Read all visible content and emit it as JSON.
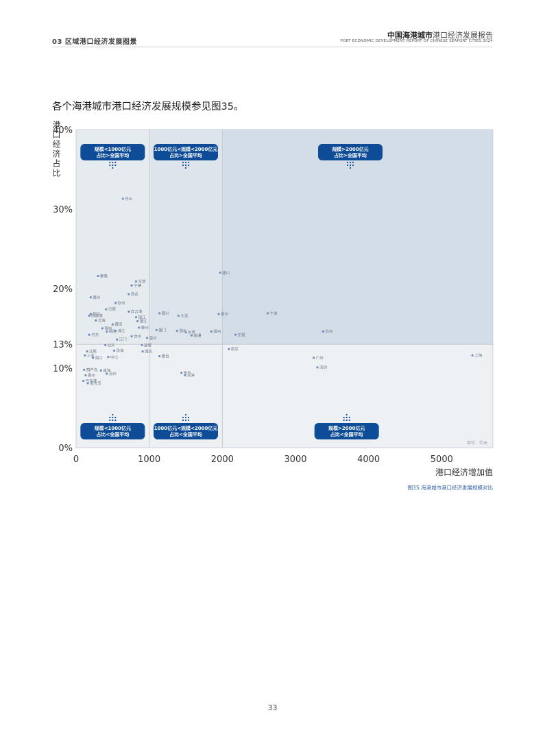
{
  "header": {
    "section": "03 区域港口经济发展图景",
    "report_title_bold": "中国海港城市",
    "report_title_rest": "港口经济发展报告",
    "report_title_en": "PORT ECONOMIC DEVELOPMENT REPORT OF CHINESE SEAPORT CITIES 2024"
  },
  "intro_text": "各个海港城市港口经济发展规模参见图35。",
  "caption": "图35.海港城市港口经济发展规模对比",
  "page_number": "33",
  "colors": {
    "badge": "#0f4c97",
    "dot": "#6e8fbf",
    "bg_low": "#eef1f4",
    "bg_high_mid": "#dde4ec",
    "bg_high_right": "#d3dde8"
  },
  "chart_data": {
    "type": "scatter",
    "xlabel": "港口经济增加值",
    "ylabel": "港口经济占比",
    "unit_note": "单位：亿元",
    "xlim": [
      0,
      5700
    ],
    "ylim": [
      0,
      40
    ],
    "x_ticks": [
      0,
      1000,
      2000,
      3000,
      4000,
      5000
    ],
    "y_ticks": [
      {
        "value": 0,
        "label": "0%"
      },
      {
        "value": 10,
        "label": "10%"
      },
      {
        "value": 13,
        "label": "13%"
      },
      {
        "value": 20,
        "label": "20%"
      },
      {
        "value": 30,
        "label": "30%"
      },
      {
        "value": 40,
        "label": "40%"
      }
    ],
    "thresholds": {
      "x": [
        1000,
        2000
      ],
      "y": 13
    },
    "quadrant_labels": [
      {
        "line1": "规模<1000亿元",
        "line2": "占比>全国平均",
        "x": 500,
        "pos": "top"
      },
      {
        "line1": "1000亿元<规模<2000亿元",
        "line2": "占比>全国平均",
        "x": 1500,
        "pos": "top"
      },
      {
        "line1": "规模>2000亿元",
        "line2": "占比>全国平均",
        "x": 3750,
        "pos": "top"
      },
      {
        "line1": "规模<1000亿元",
        "line2": "占比<全国平均",
        "x": 500,
        "pos": "bottom"
      },
      {
        "line1": "1000亿元<规模<2000亿元",
        "line2": "占比<全国平均",
        "x": 1500,
        "pos": "bottom"
      },
      {
        "line1": "规模>2000亿元",
        "line2": "占比<全国平均",
        "x": 3700,
        "pos": "bottom"
      }
    ],
    "points": [
      {
        "name": "舟山",
        "x": 640,
        "y": 31.3
      },
      {
        "name": "秦皇",
        "x": 300,
        "y": 21.6
      },
      {
        "name": "东营",
        "x": 820,
        "y": 20.9
      },
      {
        "name": "宁德",
        "x": 760,
        "y": 20.4
      },
      {
        "name": "茂名",
        "x": 720,
        "y": 19.3
      },
      {
        "name": "莆州",
        "x": 200,
        "y": 18.9
      },
      {
        "name": "钦州",
        "x": 540,
        "y": 18.2
      },
      {
        "name": "日照",
        "x": 410,
        "y": 17.4
      },
      {
        "name": "连云港",
        "x": 720,
        "y": 17.1
      },
      {
        "name": "防城港",
        "x": 180,
        "y": 16.6
      },
      {
        "name": "阳江",
        "x": 200,
        "y": 16.8
      },
      {
        "name": "镇江",
        "x": 820,
        "y": 16.4
      },
      {
        "name": "北海",
        "x": 270,
        "y": 16.0
      },
      {
        "name": "湛江",
        "x": 840,
        "y": 15.9
      },
      {
        "name": "莆田",
        "x": 500,
        "y": 15.5
      },
      {
        "name": "泰州",
        "x": 860,
        "y": 15.1
      },
      {
        "name": "锦州",
        "x": 360,
        "y": 15.0
      },
      {
        "name": "揭阳",
        "x": 420,
        "y": 14.6
      },
      {
        "name": "漳江",
        "x": 540,
        "y": 14.7
      },
      {
        "name": "丹东",
        "x": 180,
        "y": 14.2
      },
      {
        "name": "江门",
        "x": 560,
        "y": 13.6
      },
      {
        "name": "台州",
        "x": 760,
        "y": 14.0
      },
      {
        "name": "温州",
        "x": 970,
        "y": 13.8
      },
      {
        "name": "厦门",
        "x": 1100,
        "y": 14.8
      },
      {
        "name": "湖州",
        "x": 1380,
        "y": 14.7
      },
      {
        "name": "东莞",
        "x": 1500,
        "y": 14.5
      },
      {
        "name": "南通",
        "x": 1580,
        "y": 14.1
      },
      {
        "name": "福州",
        "x": 1850,
        "y": 14.6
      },
      {
        "name": "嘉兴",
        "x": 1140,
        "y": 16.9
      },
      {
        "name": "大连",
        "x": 1400,
        "y": 16.6
      },
      {
        "name": "泉州",
        "x": 1950,
        "y": 16.8
      },
      {
        "name": "盐城",
        "x": 900,
        "y": 12.9
      },
      {
        "name": "潍坊",
        "x": 910,
        "y": 12.1
      },
      {
        "name": "汕尾",
        "x": 150,
        "y": 12.1
      },
      {
        "name": "汕头",
        "x": 400,
        "y": 12.9
      },
      {
        "name": "珠海",
        "x": 520,
        "y": 12.2
      },
      {
        "name": "三亚",
        "x": 120,
        "y": 11.6
      },
      {
        "name": "海口",
        "x": 230,
        "y": 11.3
      },
      {
        "name": "中山",
        "x": 440,
        "y": 11.4
      },
      {
        "name": "葫芦岛",
        "x": 110,
        "y": 9.8
      },
      {
        "name": "威海",
        "x": 340,
        "y": 9.7
      },
      {
        "name": "惠州",
        "x": 130,
        "y": 9.1
      },
      {
        "name": "沧州",
        "x": 420,
        "y": 9.3
      },
      {
        "name": "丹东港",
        "x": 100,
        "y": 8.4
      },
      {
        "name": "南充岛",
        "x": 160,
        "y": 8.1
      },
      {
        "name": "烟台",
        "x": 1140,
        "y": 11.5
      },
      {
        "name": "唐山",
        "x": 1970,
        "y": 22.0
      },
      {
        "name": "青岛",
        "x": 1440,
        "y": 9.4
      },
      {
        "name": "天津",
        "x": 1490,
        "y": 9.1
      },
      {
        "name": "无锡",
        "x": 2180,
        "y": 14.2
      },
      {
        "name": "南京",
        "x": 2090,
        "y": 12.4
      },
      {
        "name": "宁波",
        "x": 2620,
        "y": 16.9
      },
      {
        "name": "苏州",
        "x": 3380,
        "y": 14.6
      },
      {
        "name": "广州",
        "x": 3250,
        "y": 11.3
      },
      {
        "name": "深圳",
        "x": 3300,
        "y": 10.1
      },
      {
        "name": "上海",
        "x": 5420,
        "y": 11.6
      }
    ]
  }
}
